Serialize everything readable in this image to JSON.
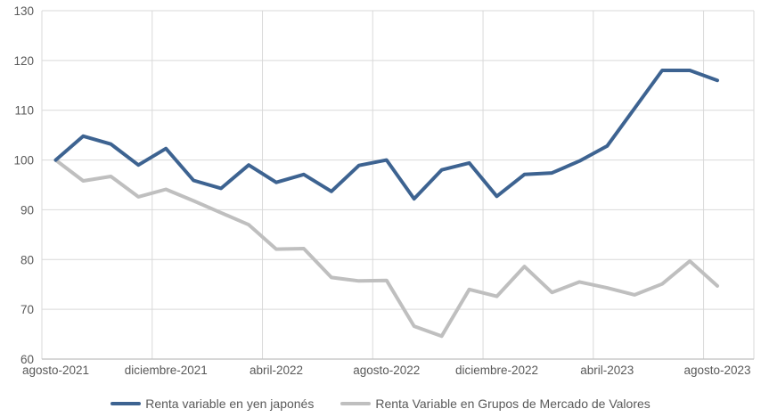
{
  "colors": {
    "series_blue": "#3D6391",
    "series_gray": "#BFBFBF",
    "gridline": "#D9D9D9",
    "axis_line": "#BFBFBF",
    "axis_label": "#595959",
    "background": "#FFFFFF"
  },
  "chart_data": {
    "type": "line",
    "title": "",
    "xlabel": "",
    "ylabel": "",
    "n_points": 25,
    "x_tick_labels": [
      "agosto-2021",
      "diciembre-2021",
      "abril-2022",
      "agosto-2022",
      "diciembre-2022",
      "abril-2023",
      "agosto-2023"
    ],
    "x_tick_positions": [
      0,
      4,
      8,
      12,
      16,
      20,
      24
    ],
    "y_ticks": [
      60,
      70,
      80,
      90,
      100,
      110,
      120,
      130
    ],
    "ylim": [
      60,
      130
    ],
    "grid": true,
    "legend_position": "bottom",
    "series": [
      {
        "name": "Renta variable en yen japonés",
        "color": "#3D6391",
        "values": [
          100,
          104.8,
          103.2,
          99,
          102.3,
          95.9,
          94.3,
          99,
          95.5,
          97.1,
          93.7,
          98.9,
          100,
          92.2,
          98,
          99.4,
          92.7,
          97.1,
          97.4,
          99.8,
          102.8,
          110.4,
          118,
          118,
          116
        ]
      },
      {
        "name": "Renta Variable en Grupos de Mercado de Valores",
        "color": "#BFBFBF",
        "values": [
          100,
          95.8,
          96.7,
          92.6,
          94.1,
          91.8,
          89.4,
          87,
          82.1,
          82.2,
          76.4,
          75.7,
          75.8,
          66.6,
          64.6,
          74,
          72.6,
          78.6,
          73.4,
          75.5,
          74.3,
          72.9,
          75.1,
          79.7,
          74.7
        ]
      }
    ]
  }
}
